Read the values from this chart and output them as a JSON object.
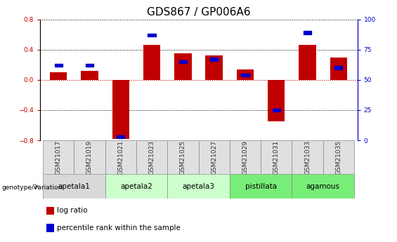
{
  "title": "GDS867 / GP006A6",
  "samples": [
    "GSM21017",
    "GSM21019",
    "GSM21021",
    "GSM21023",
    "GSM21025",
    "GSM21027",
    "GSM21029",
    "GSM21031",
    "GSM21033",
    "GSM21035"
  ],
  "log_ratio": [
    0.1,
    0.12,
    -0.78,
    0.46,
    0.35,
    0.32,
    0.14,
    -0.55,
    0.46,
    0.3
  ],
  "percentile_rank_pct": [
    62,
    62,
    3,
    87,
    65,
    67,
    54,
    25,
    89,
    60
  ],
  "ylim_left": [
    -0.8,
    0.8
  ],
  "ylim_right": [
    0,
    100
  ],
  "yticks_left": [
    -0.8,
    -0.4,
    0.0,
    0.4,
    0.8
  ],
  "yticks_right": [
    0,
    25,
    50,
    75,
    100
  ],
  "bar_color_red": "#c00000",
  "bar_color_blue": "#0000cc",
  "zero_line_color": "#cc0000",
  "bar_width": 0.55,
  "blue_bar_width": 0.25,
  "blue_bar_height": 0.04,
  "title_fontsize": 11,
  "tick_fontsize": 6.5,
  "label_fontsize": 7.5,
  "legend_fontsize": 7.5,
  "group_info": [
    {
      "label": "apetala1",
      "start": 0,
      "end": 1,
      "color": "#d9d9d9"
    },
    {
      "label": "apetala2",
      "start": 2,
      "end": 3,
      "color": "#ccffcc"
    },
    {
      "label": "apetala3",
      "start": 4,
      "end": 5,
      "color": "#ccffcc"
    },
    {
      "label": "pistillata",
      "start": 6,
      "end": 7,
      "color": "#77ee77"
    },
    {
      "label": "agamous",
      "start": 8,
      "end": 9,
      "color": "#77ee77"
    }
  ]
}
